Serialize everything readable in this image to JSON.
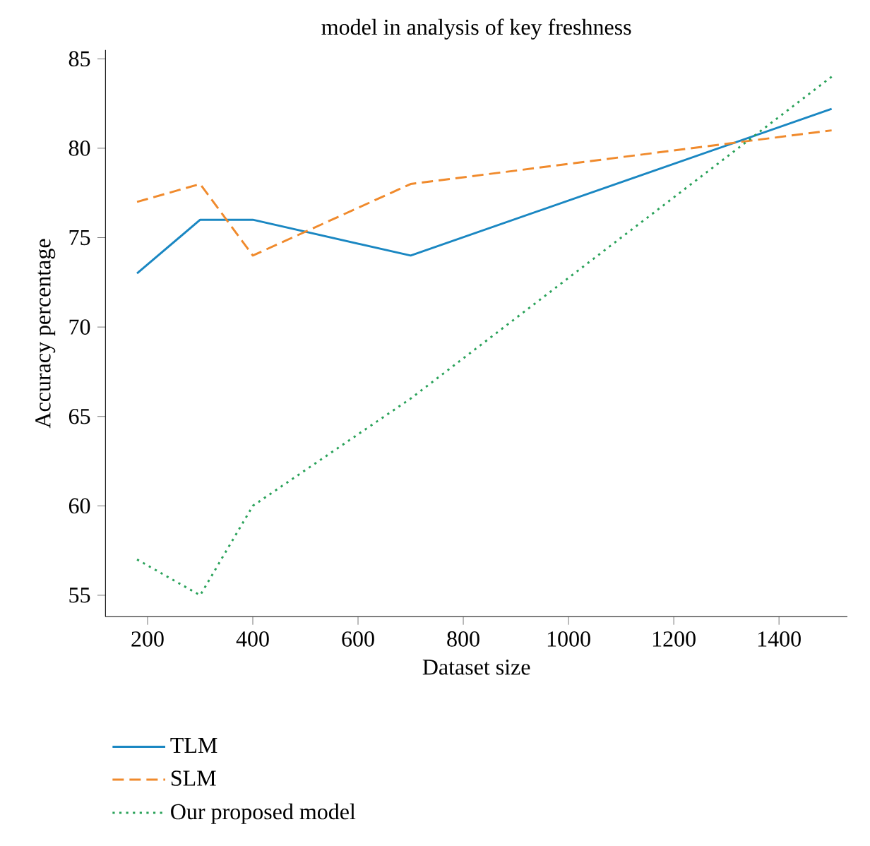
{
  "chart_data": {
    "type": "line",
    "title": "model in analysis of key freshness",
    "xlabel": "Dataset size",
    "ylabel": "Accuracy percentage",
    "xlim": [
      120,
      1530
    ],
    "ylim": [
      53.8,
      85.5
    ],
    "xticks": [
      200,
      400,
      600,
      800,
      1000,
      1200,
      1400
    ],
    "yticks": [
      55,
      60,
      65,
      70,
      75,
      80,
      85
    ],
    "grid": false,
    "legend": "bottom",
    "marker": "none",
    "series": [
      {
        "name": "TLM",
        "color": "#1a87c2",
        "line_style": "solid",
        "x": [
          180,
          300,
          400,
          700,
          1500
        ],
        "values": [
          73,
          76,
          76,
          74,
          82.2
        ]
      },
      {
        "name": "SLM",
        "color": "#f08a2c",
        "line_style": "dashed",
        "x": [
          180,
          300,
          400,
          700,
          1500
        ],
        "values": [
          77,
          78,
          74,
          78,
          81
        ]
      },
      {
        "name": "Our proposed model",
        "color": "#2aa25a",
        "line_style": "dotted",
        "x": [
          180,
          300,
          400,
          700,
          1500
        ],
        "values": [
          57,
          55,
          60,
          66,
          84
        ]
      }
    ]
  }
}
